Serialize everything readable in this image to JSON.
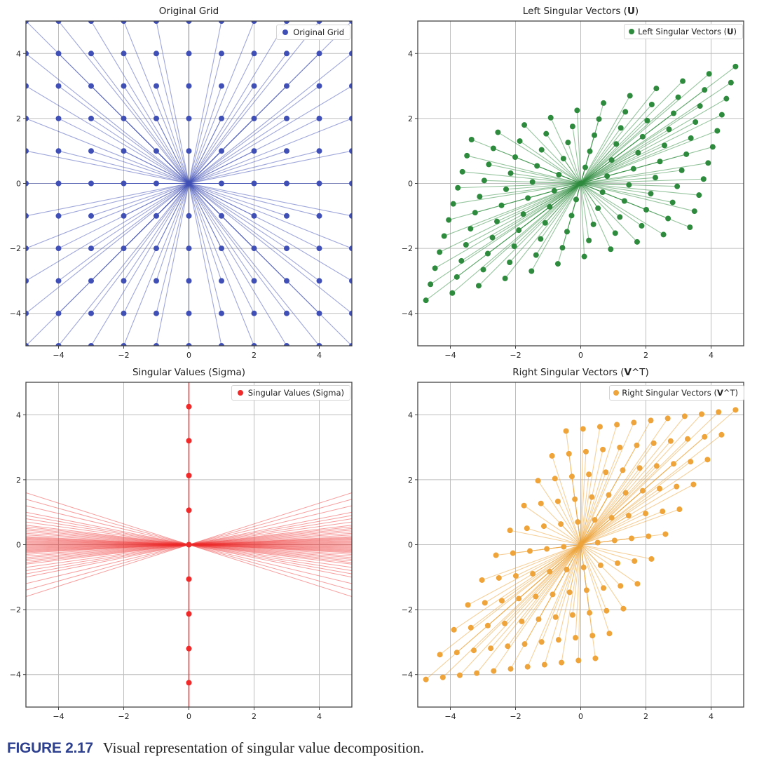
{
  "figure": {
    "caption_label": "FIGURE 2.17",
    "caption_text": "Visual representation of singular value decomposition."
  },
  "colors": {
    "original": "#3f4fb5",
    "left": "#2e8b3e",
    "sigma": "#ee2a2a",
    "right": "#eea43a",
    "grid": "#bdbdbd",
    "axis": "#444444"
  },
  "chart_data": [
    {
      "id": "original",
      "type": "scatter",
      "title": "Original Grid",
      "title_plain": "Original Grid",
      "legend": "Original Grid",
      "legend_placement": "top-right",
      "grid": true,
      "xlim": [
        -5,
        5
      ],
      "ylim": [
        -5,
        5
      ],
      "xticks": [
        -4,
        -2,
        0,
        2,
        4
      ],
      "yticks": [
        -4,
        -2,
        0,
        2,
        4
      ],
      "xtick_labels": [
        "−4",
        "−2",
        "0",
        "2",
        "4"
      ],
      "ytick_labels": [
        "−4",
        "−2",
        "0",
        "2",
        "4"
      ],
      "description": "11x11 grid of points x,y in {-5..5}; each point joined to origin by a line",
      "grid_range": [
        -5,
        5
      ],
      "transform": [
        [
          1,
          0
        ],
        [
          0,
          1
        ]
      ],
      "lines_to_origin": true
    },
    {
      "id": "left",
      "type": "scatter",
      "title": "Left Singular Vectors (",
      "title_bold": "U",
      "title_end": ")",
      "legend": "Left Singular Vectors (",
      "legend_bold": "U",
      "legend_end": ")",
      "legend_placement": "top-right",
      "grid": true,
      "xlim": [
        -5,
        5
      ],
      "ylim": [
        -5,
        5
      ],
      "xticks": [
        -4,
        -2,
        0,
        2,
        4
      ],
      "yticks": [
        -4,
        -2,
        0,
        2,
        4
      ],
      "xtick_labels": [
        "−4",
        "−2",
        "0",
        "2",
        "4"
      ],
      "ytick_labels": [
        "−4",
        "−2",
        "0",
        "2",
        "4"
      ],
      "description": "grid points transformed by U; approx. linear map [[0.81,0.14],[0.225,0.495]]",
      "grid_range": [
        -5,
        5
      ],
      "transform": [
        [
          0.81,
          0.14
        ],
        [
          0.225,
          0.495
        ]
      ],
      "lines_to_origin": true
    },
    {
      "id": "sigma",
      "type": "scatter",
      "title": "Singular Values (Sigma)",
      "title_plain": "Singular Values (Sigma)",
      "legend": "Singular Values (Sigma)",
      "legend_placement": "top-right",
      "grid": true,
      "xlim": [
        -5,
        5
      ],
      "ylim": [
        -5,
        5
      ],
      "xticks": [
        -4,
        -2,
        0,
        2,
        4
      ],
      "yticks": [
        -4,
        -2,
        0,
        2,
        4
      ],
      "xtick_labels": [
        "−4",
        "−2",
        "0",
        "2",
        "4"
      ],
      "ytick_labels": [
        "−4",
        "−2",
        "0",
        "2",
        "4"
      ],
      "points": [
        {
          "x": 0,
          "y": 4.25
        },
        {
          "x": 0,
          "y": 3.2
        },
        {
          "x": 0,
          "y": 2.13
        },
        {
          "x": 0,
          "y": 1.06
        },
        {
          "x": 0,
          "y": 0
        },
        {
          "x": 0,
          "y": -1.06
        },
        {
          "x": 0,
          "y": -2.13
        },
        {
          "x": 0,
          "y": -3.2
        },
        {
          "x": 0,
          "y": -4.25
        }
      ],
      "vertical_line_x": 0,
      "fan_slopes": [
        0.32,
        0.28,
        0.24,
        0.2,
        0.18,
        0.16,
        0.14,
        0.12,
        0.11,
        0.1,
        0.09,
        0.08,
        0.07,
        0.06,
        0.05,
        0.045,
        0.04,
        0.035,
        0.03,
        0.025,
        0.02,
        0.015,
        0.01,
        0.005,
        0,
        -0.005,
        -0.01,
        -0.015,
        -0.02,
        -0.025,
        -0.03,
        -0.035,
        -0.04,
        -0.045,
        -0.05,
        -0.06,
        -0.07,
        -0.08,
        -0.09,
        -0.1,
        -0.11,
        -0.12,
        -0.14,
        -0.16,
        -0.18,
        -0.2,
        -0.24,
        -0.28,
        -0.32
      ],
      "description": "points at x=0 spaced ~1.06 apart; fan of lines through origin spanning x in [-5,5]"
    },
    {
      "id": "right",
      "type": "scatter",
      "title": "Right Singular Vectors (",
      "title_bold": "V",
      "title_end": "^T)",
      "legend": "Right Singular Vectors (",
      "legend_bold": "V",
      "legend_end": "^T)",
      "legend_placement": "top-right",
      "grid": true,
      "xlim": [
        -5,
        5
      ],
      "ylim": [
        -5,
        5
      ],
      "xticks": [
        -4,
        -2,
        0,
        2,
        4
      ],
      "yticks": [
        -4,
        -2,
        0,
        2,
        4
      ],
      "xtick_labels": [
        "−4",
        "−2",
        "0",
        "2",
        "4"
      ],
      "ytick_labels": [
        "−4",
        "−2",
        "0",
        "2",
        "4"
      ],
      "description": "grid points transformed by V^T; approx. linear map [[0.52,0.43],[0.065,0.765]]",
      "grid_range": [
        -5,
        5
      ],
      "transform": [
        [
          0.52,
          0.43
        ],
        [
          0.065,
          0.765
        ]
      ],
      "lines_to_origin": true
    }
  ]
}
